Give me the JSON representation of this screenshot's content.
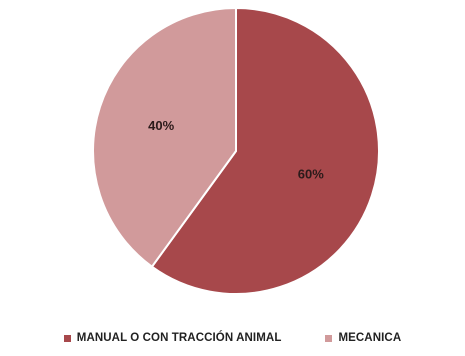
{
  "chart_data": {
    "type": "pie",
    "categories": [
      "MANUAL O CON TRACCIÓN ANIMAL",
      "MECANICA"
    ],
    "values": [
      60,
      40
    ],
    "data_labels": [
      "60%",
      "40%"
    ],
    "start_angle_deg": 0,
    "direction": "clockwise",
    "legend_position": "bottom",
    "colors": [
      "#a7484b",
      "#d19a9b"
    ]
  }
}
